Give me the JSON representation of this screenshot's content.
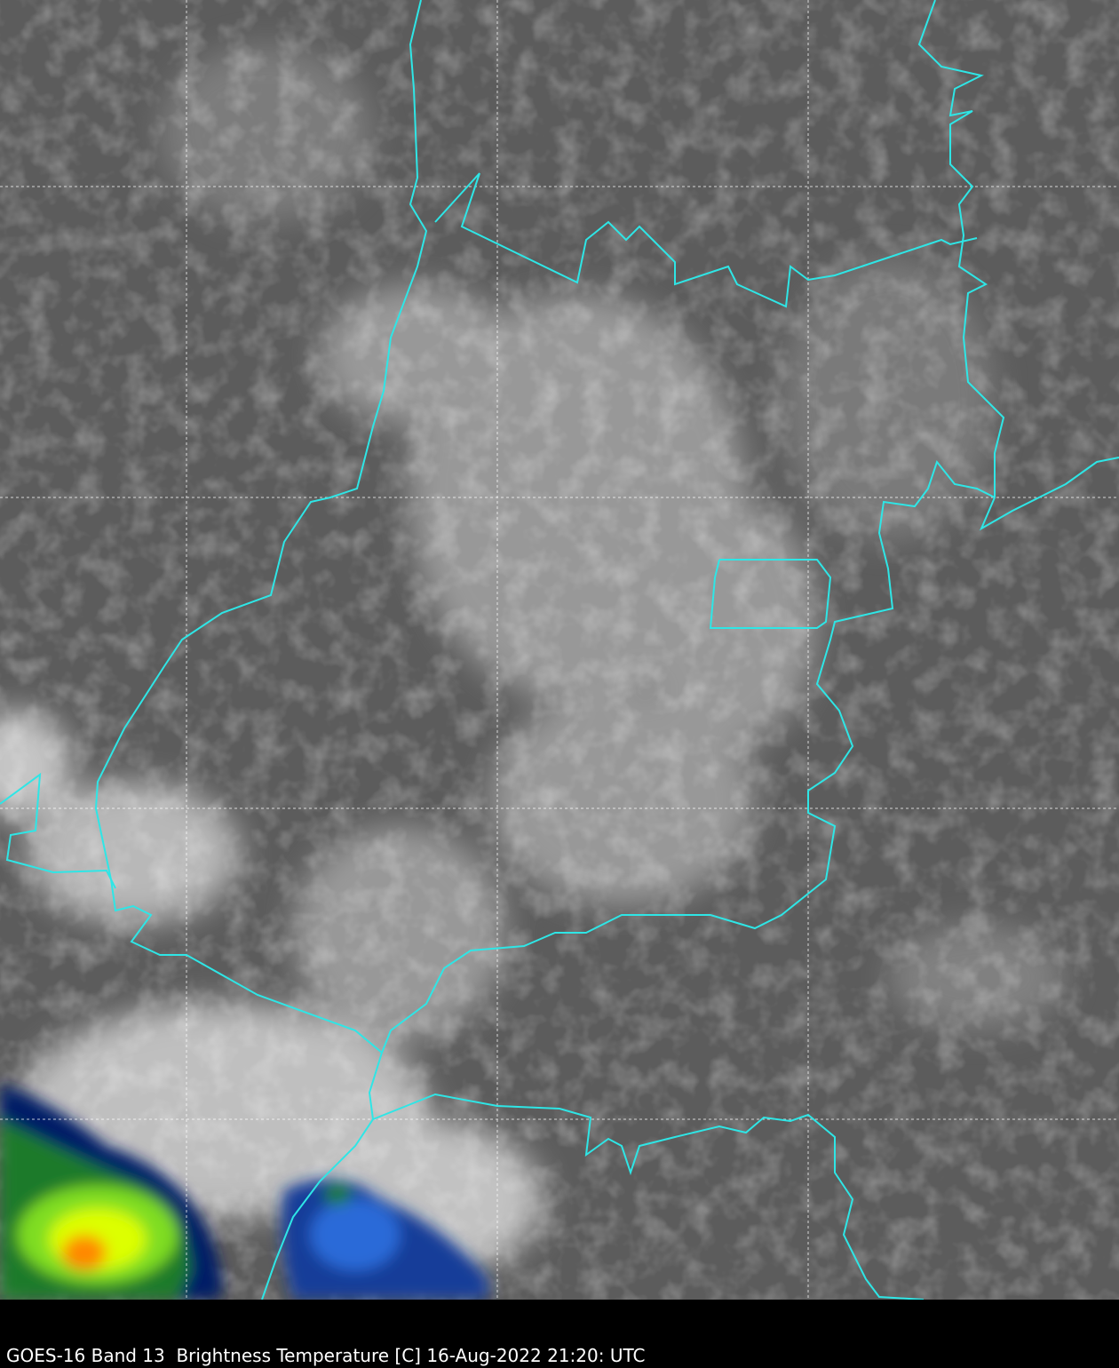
{
  "caption": "GOES-16 Band 13  Brightness Temperature [C] 16-Aug-2022 21:20: UTC",
  "colors": {
    "background": "#5a5a5a",
    "border": "#2ee6e6",
    "grid": "#ffffff",
    "cold_cloud_colors": [
      "#001a66",
      "#1f5fd6",
      "#33cc33",
      "#ccff00",
      "#ffff00",
      "#ff6600"
    ]
  },
  "layers": [
    "ir-brightness-temperature",
    "political-borders",
    "lat-lon-grid"
  ]
}
